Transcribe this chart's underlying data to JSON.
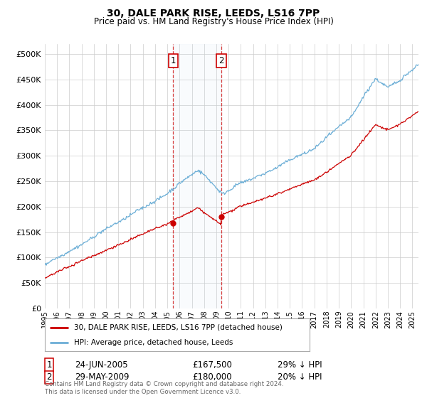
{
  "title": "30, DALE PARK RISE, LEEDS, LS16 7PP",
  "subtitle": "Price paid vs. HM Land Registry's House Price Index (HPI)",
  "hpi_color": "#6baed6",
  "price_color": "#cc0000",
  "sale1_year": 2005.48,
  "sale1_price": 167500,
  "sale2_year": 2009.41,
  "sale2_price": 180000,
  "legend_property": "30, DALE PARK RISE, LEEDS, LS16 7PP (detached house)",
  "legend_hpi": "HPI: Average price, detached house, Leeds",
  "footer": "Contains HM Land Registry data © Crown copyright and database right 2024.\nThis data is licensed under the Open Government Licence v3.0.",
  "ylim": [
    0,
    520000
  ],
  "yticks": [
    0,
    50000,
    100000,
    150000,
    200000,
    250000,
    300000,
    350000,
    400000,
    450000,
    500000
  ],
  "xstart": 1995.0,
  "xend": 2025.5,
  "background_color": "#ffffff",
  "grid_color": "#cccccc",
  "sale1_date_str": "24-JUN-2005",
  "sale1_price_str": "£167,500",
  "sale1_hpi_str": "29% ↓ HPI",
  "sale2_date_str": "29-MAY-2009",
  "sale2_price_str": "£180,000",
  "sale2_hpi_str": "20% ↓ HPI"
}
